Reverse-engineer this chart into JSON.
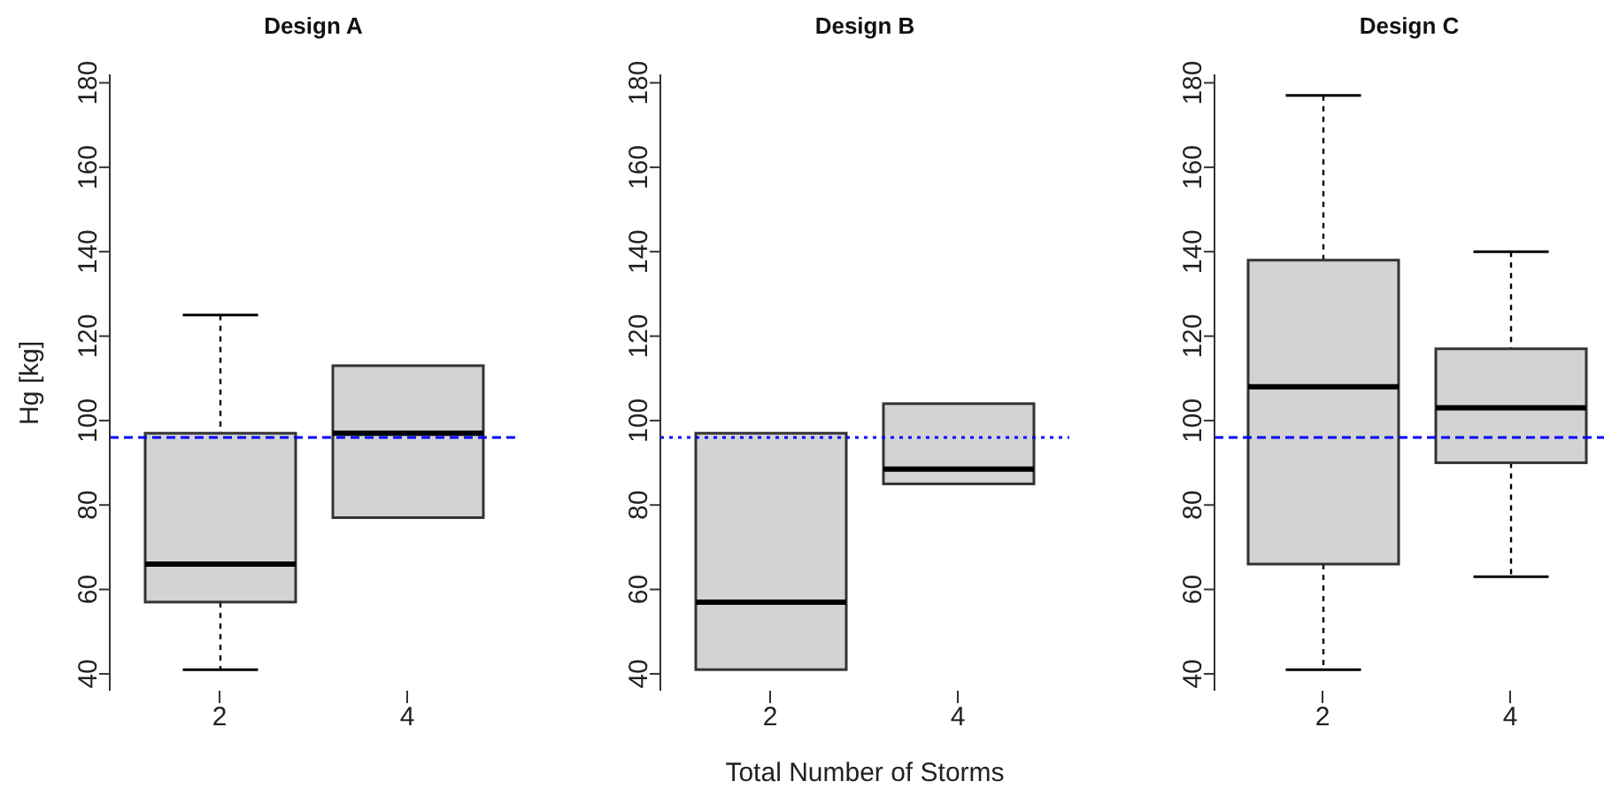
{
  "chart_data": [
    {
      "type": "box",
      "title": "Design A",
      "ylabel": "Hg [kg]",
      "categories": [
        "2",
        "4"
      ],
      "boxes": [
        {
          "low": 41,
          "q1": 57,
          "median": 66,
          "q3": 97,
          "high": 125
        },
        {
          "low": 77,
          "q1": 77,
          "median": 97,
          "q3": 113,
          "high": 113
        }
      ],
      "ylim": [
        36,
        182
      ],
      "yticks": [
        40,
        60,
        80,
        100,
        120,
        140,
        160,
        180
      ],
      "ref_lines": [
        {
          "axis": "y",
          "value": 96,
          "color": "#0000ff",
          "line_style": "dashed"
        }
      ]
    },
    {
      "type": "box",
      "title": "Design B",
      "xlabel": "Total Number of Storms",
      "categories": [
        "2",
        "4"
      ],
      "boxes": [
        {
          "low": 41,
          "q1": 41,
          "median": 57,
          "q3": 97,
          "high": 97
        },
        {
          "low": 85,
          "q1": 85,
          "median": 88.5,
          "q3": 104,
          "high": 104
        }
      ],
      "ylim": [
        36,
        182
      ],
      "yticks": [
        40,
        60,
        80,
        100,
        120,
        140,
        160,
        180
      ],
      "ref_lines": [
        {
          "axis": "y",
          "value": 96,
          "color": "#0000ff",
          "line_style": "dotted"
        }
      ]
    },
    {
      "type": "box",
      "title": "Design C",
      "categories": [
        "2",
        "4"
      ],
      "boxes": [
        {
          "low": 41,
          "q1": 66,
          "median": 108,
          "q3": 138,
          "high": 177
        },
        {
          "low": 63,
          "q1": 90,
          "median": 103,
          "q3": 117,
          "high": 140
        }
      ],
      "ylim": [
        36,
        182
      ],
      "yticks": [
        40,
        60,
        80,
        100,
        120,
        140,
        160,
        180
      ],
      "ref_lines": [
        {
          "axis": "y",
          "value": 96,
          "color": "#0000ff",
          "line_style": "dashed"
        }
      ]
    }
  ]
}
